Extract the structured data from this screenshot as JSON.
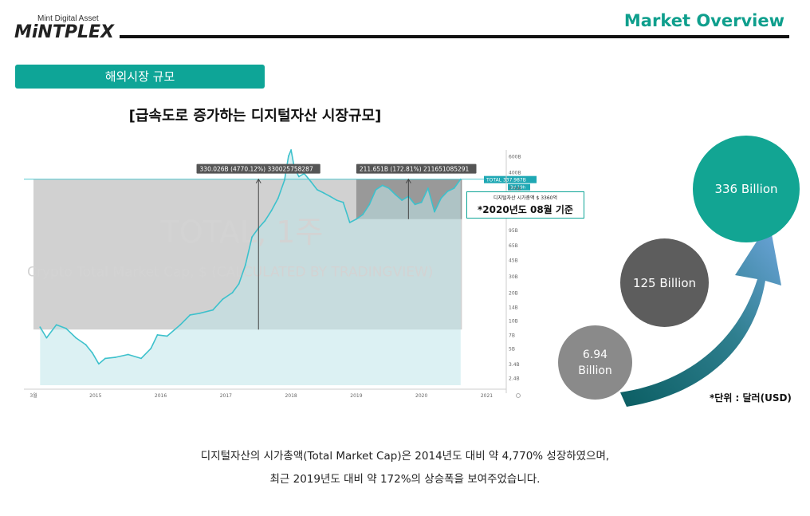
{
  "header": {
    "logo_subtitle": "Mint Digital Asset",
    "logo_name": "MiNTPLEX",
    "title": "Market Overview"
  },
  "section": {
    "label": "해외시장 규모"
  },
  "heading": "[급속도로 증가하는 디지털자산 시장규모]",
  "chart_data": {
    "type": "line",
    "watermark_title": "TOTAL, 1주",
    "watermark_subtitle": "Crypto Total Market Cap, $ (CALCULATED BY TRADINGVIEW)",
    "x_ticks": [
      "3월",
      "2015",
      "2016",
      "2017",
      "2018",
      "2019",
      "2020",
      "2021"
    ],
    "y_ticks": [
      "600B",
      "400B",
      "270B",
      "95B",
      "65B",
      "45B",
      "30B",
      "20B",
      "14B",
      "10B",
      "7B",
      "5B",
      "3.4B",
      "2.4B"
    ],
    "y_scale": "log",
    "ylim_billion": [
      2.0,
      700
    ],
    "series": [
      {
        "name": "TOTAL",
        "color": "#3dc1cc",
        "x": [
          2014.15,
          2014.25,
          2014.4,
          2014.55,
          2014.7,
          2014.85,
          2014.95,
          2015.05,
          2015.15,
          2015.3,
          2015.5,
          2015.7,
          2015.85,
          2015.95,
          2016.1,
          2016.3,
          2016.45,
          2016.6,
          2016.8,
          2016.95,
          2017.1,
          2017.2,
          2017.3,
          2017.4,
          2017.5,
          2017.6,
          2017.7,
          2017.8,
          2017.9,
          2017.96,
          2018.0,
          2018.05,
          2018.12,
          2018.2,
          2018.3,
          2018.4,
          2018.5,
          2018.6,
          2018.7,
          2018.8,
          2018.9,
          2019.0,
          2019.1,
          2019.2,
          2019.3,
          2019.4,
          2019.5,
          2019.6,
          2019.7,
          2019.8,
          2019.9,
          2020.0,
          2020.1,
          2020.2,
          2020.3,
          2020.4,
          2020.5,
          2020.6
        ],
        "y": [
          8.5,
          6.5,
          9.0,
          8.2,
          6.5,
          5.5,
          4.5,
          3.4,
          3.9,
          4.0,
          4.3,
          3.9,
          5.0,
          7.0,
          6.8,
          9.0,
          11.5,
          12.0,
          13.0,
          17.0,
          20.0,
          25.0,
          40.0,
          80.0,
          100.0,
          120.0,
          155.0,
          210.0,
          330.0,
          600.0,
          700.0,
          450.0,
          360.0,
          390.0,
          320.0,
          260.0,
          240.0,
          220.0,
          200.0,
          190.0,
          115.0,
          125.0,
          140.0,
          180.0,
          260.0,
          290.0,
          270.0,
          230.0,
          200.0,
          220.0,
          180.0,
          190.0,
          270.0,
          150.0,
          210.0,
          250.0,
          270.0,
          337.9
        ]
      }
    ],
    "annotations": [
      {
        "label": "330.026B (4770.12%) 330025758287"
      },
      {
        "label": "211.651B (172.81%) 211651085291"
      }
    ],
    "price_tag": {
      "name": "TOTAL",
      "value": "337.987B"
    },
    "price_tag_sub": "3d 19h"
  },
  "note": {
    "small": "디지털자산 시가총액 $ 3360억",
    "main": "*2020년도 08월 기준"
  },
  "bubbles": [
    {
      "label": "6.94\nBillion",
      "value_billion": 6.94
    },
    {
      "label": "125 Billion",
      "value_billion": 125
    },
    {
      "label": "336 Billion",
      "value_billion": 336
    }
  ],
  "unit_label": "*단위 : 달러(USD)",
  "caption": {
    "line1": "디지털자산의 시가총액(Total Market Cap)은 2014년도 대비 약 4,770% 성장하였으며,",
    "line2": "최근 2019년도 대비 약 172%의 상승폭을 보여주었습니다."
  },
  "colors": {
    "accent": "#0ea597",
    "series_line": "#3dc1cc",
    "bubble_small": "#8a8a8a",
    "bubble_mid": "#5d5d5d",
    "bubble_large": "#12a593"
  }
}
